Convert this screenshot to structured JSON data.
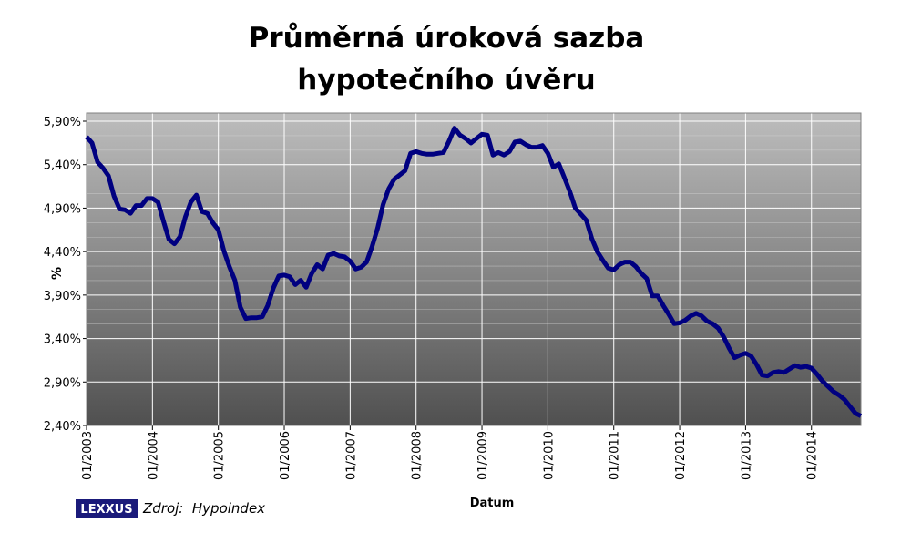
{
  "chart_data": {
    "type": "line",
    "title": [
      "Průměrná úroková sazba",
      "hypotečního úvěru"
    ],
    "y_label": "%",
    "x_label": "Datum",
    "source": "Zdroj:  Hypoindex",
    "logo": "LEXXUS",
    "color": "#000080",
    "categories": [
      "01/2003",
      null,
      null,
      null,
      null,
      null,
      null,
      null,
      null,
      null,
      null,
      null,
      "01/2004",
      null,
      null,
      null,
      null,
      null,
      null,
      null,
      null,
      null,
      null,
      null,
      "01/2005",
      null,
      null,
      null,
      null,
      null,
      null,
      null,
      null,
      null,
      null,
      null,
      "01/2006",
      null,
      null,
      null,
      null,
      null,
      null,
      null,
      null,
      null,
      null,
      null,
      "01/2007",
      null,
      null,
      null,
      null,
      null,
      null,
      null,
      null,
      null,
      null,
      null,
      "01/2008",
      null,
      null,
      null,
      null,
      null,
      null,
      null,
      null,
      null,
      null,
      null,
      "01/2009",
      null,
      null,
      null,
      null,
      null,
      null,
      null,
      null,
      null,
      null,
      null,
      "01/2010",
      null,
      null,
      null,
      null,
      null,
      null,
      null,
      null,
      null,
      null,
      null,
      "01/2011",
      null,
      null,
      null,
      null,
      null,
      null,
      null,
      null,
      null,
      null,
      null,
      "01/2012",
      null,
      null,
      null,
      null,
      null,
      null,
      null,
      null,
      null,
      null,
      null,
      "01/2013",
      null,
      null,
      null,
      null,
      null,
      null,
      null,
      null,
      null,
      null,
      null,
      "01/2014",
      null,
      null,
      null,
      null,
      null,
      null,
      null,
      null,
      null
    ],
    "values": [
      5.72,
      5.65,
      5.43,
      5.36,
      5.27,
      5.04,
      4.89,
      4.88,
      4.84,
      4.93,
      4.93,
      5.01,
      5.01,
      4.97,
      4.75,
      4.54,
      4.49,
      4.57,
      4.8,
      4.97,
      5.05,
      4.86,
      4.84,
      4.73,
      4.65,
      4.41,
      4.23,
      4.07,
      3.76,
      3.63,
      3.64,
      3.64,
      3.65,
      3.78,
      3.98,
      4.12,
      4.13,
      4.11,
      4.02,
      4.07,
      3.99,
      4.15,
      4.25,
      4.2,
      4.36,
      4.38,
      4.35,
      4.34,
      4.29,
      4.2,
      4.22,
      4.28,
      4.46,
      4.67,
      4.94,
      5.12,
      5.23,
      5.28,
      5.33,
      5.53,
      5.55,
      5.53,
      5.52,
      5.52,
      5.53,
      5.54,
      5.67,
      5.82,
      5.74,
      5.7,
      5.65,
      5.7,
      5.75,
      5.74,
      5.51,
      5.54,
      5.51,
      5.55,
      5.66,
      5.67,
      5.63,
      5.6,
      5.6,
      5.62,
      5.53,
      5.37,
      5.41,
      5.25,
      5.09,
      4.9,
      4.83,
      4.76,
      4.55,
      4.4,
      4.3,
      4.21,
      4.19,
      4.25,
      4.28,
      4.28,
      4.23,
      4.15,
      4.09,
      3.89,
      3.89,
      3.78,
      3.68,
      3.57,
      3.58,
      3.61,
      3.66,
      3.69,
      3.66,
      3.6,
      3.57,
      3.52,
      3.42,
      3.29,
      3.18,
      3.21,
      3.23,
      3.2,
      3.1,
      2.98,
      2.97,
      3.01,
      3.02,
      3.01,
      3.05,
      3.09,
      3.07,
      3.08,
      3.06,
      2.99,
      2.91,
      2.85,
      2.79,
      2.75,
      2.7,
      2.62,
      2.54,
      2.51
    ],
    "ylim": [
      2.4,
      5.9
    ],
    "yticks": [
      {
        "value": 2.4,
        "label": "2,40%"
      },
      {
        "value": 2.9,
        "label": "2,90%"
      },
      {
        "value": 3.4,
        "label": "3,40%"
      },
      {
        "value": 3.9,
        "label": "3,90%"
      },
      {
        "value": 4.4,
        "label": "4,40%"
      },
      {
        "value": 4.9,
        "label": "4,90%"
      },
      {
        "value": 5.4,
        "label": "5,40%"
      },
      {
        "value": 5.9,
        "label": "5,90%"
      }
    ],
    "grid": true
  }
}
